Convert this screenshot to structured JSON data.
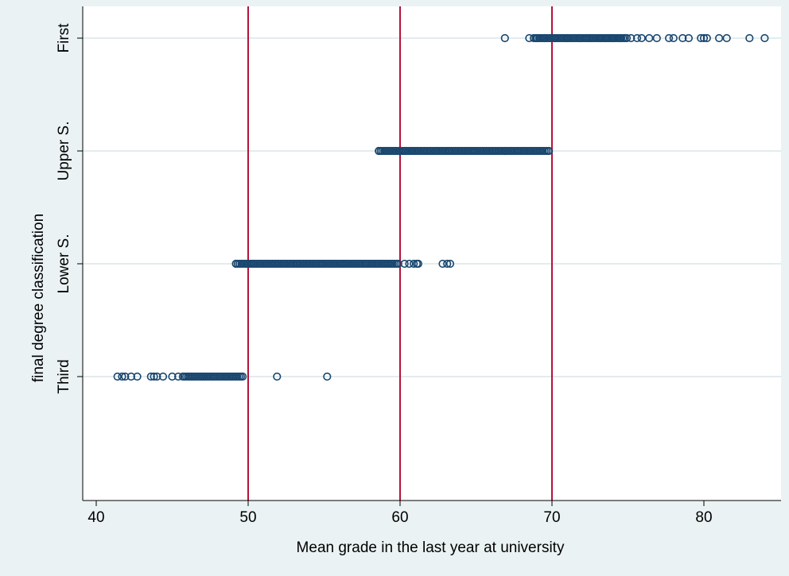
{
  "chart_data": {
    "type": "scatter",
    "title": "",
    "xlabel": "Mean grade in the last year at university",
    "ylabel": "final degree classification",
    "xlim": [
      39,
      85
    ],
    "xticks": [
      40,
      50,
      60,
      70,
      80
    ],
    "y_categories": [
      "Third",
      "Lower S.",
      "Upper S.",
      "First"
    ],
    "reference_lines_x": [
      50,
      60,
      70
    ],
    "grid": "horizontal",
    "marker": "hollow-circle",
    "colors": {
      "background": "#eaf2f3",
      "plot_area": "#ffffff",
      "marker": "#1a476f",
      "reference_line": "#b5133a",
      "grid": "#e3ecee"
    },
    "series": [
      {
        "category": "First",
        "dense_range": [
          68.8,
          75.0
        ],
        "x": [
          66.9,
          68.5,
          69.0,
          69.5,
          70.2,
          71.0,
          71.8,
          72.5,
          73.2,
          74.0,
          74.5,
          75.2,
          75.6,
          75.9,
          76.4,
          76.9,
          77.7,
          78.0,
          78.6,
          79.0,
          79.8,
          80.0,
          80.2,
          81.0,
          81.5,
          83.0,
          84.0
        ]
      },
      {
        "category": "Upper S.",
        "dense_range": [
          58.6,
          69.8
        ],
        "x": [
          58.6,
          69.8
        ]
      },
      {
        "category": "Lower S.",
        "dense_range": [
          49.2,
          59.9
        ],
        "x": [
          49.2,
          60.3,
          60.6,
          60.9,
          61.1,
          61.2,
          62.8,
          63.1,
          63.3
        ]
      },
      {
        "category": "Third",
        "dense_range": [
          45.8,
          49.7
        ],
        "x": [
          41.4,
          41.7,
          41.9,
          42.3,
          42.7,
          43.6,
          43.8,
          44.0,
          44.4,
          45.0,
          45.4,
          45.7,
          51.9,
          55.2
        ]
      }
    ]
  }
}
